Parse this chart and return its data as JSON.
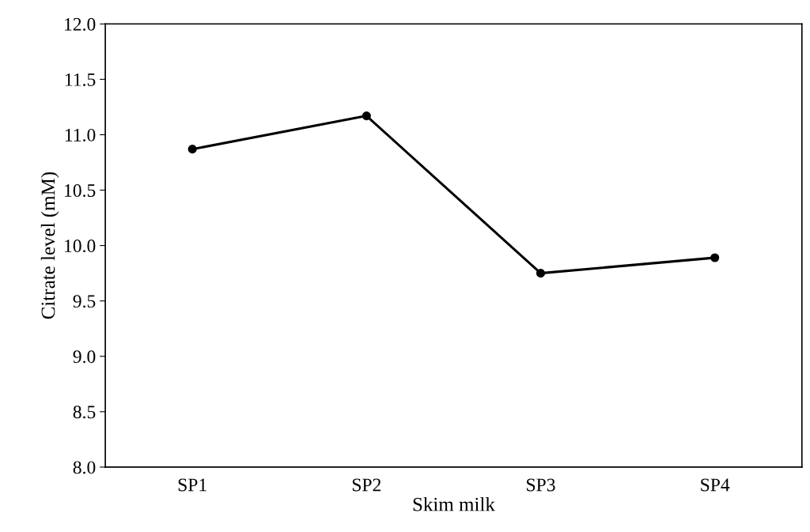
{
  "chart_data": {
    "type": "line",
    "xlabel": "Skim milk",
    "ylabel": "Citrate level (mM)",
    "categories": [
      "SP1",
      "SP2",
      "SP3",
      "SP4"
    ],
    "series": [
      {
        "color": "#000000",
        "values": [
          10.87,
          11.17,
          9.75,
          9.89
        ]
      }
    ],
    "ylim": [
      8.0,
      12.0
    ],
    "yticks": [
      {
        "value": 8,
        "label": "8.0"
      },
      {
        "value": 8.5,
        "label": "8.5"
      },
      {
        "value": 9,
        "label": "9.0"
      },
      {
        "value": 9.5,
        "label": "9.5"
      },
      {
        "value": 10,
        "label": "10.0"
      },
      {
        "value": 10.5,
        "label": "10.5"
      },
      {
        "value": 11,
        "label": "11.0"
      },
      {
        "value": 11.5,
        "label": "11.5"
      },
      {
        "value": 12,
        "label": "12.0"
      }
    ],
    "grid": false,
    "marker": "circle",
    "line_style": "solid"
  }
}
